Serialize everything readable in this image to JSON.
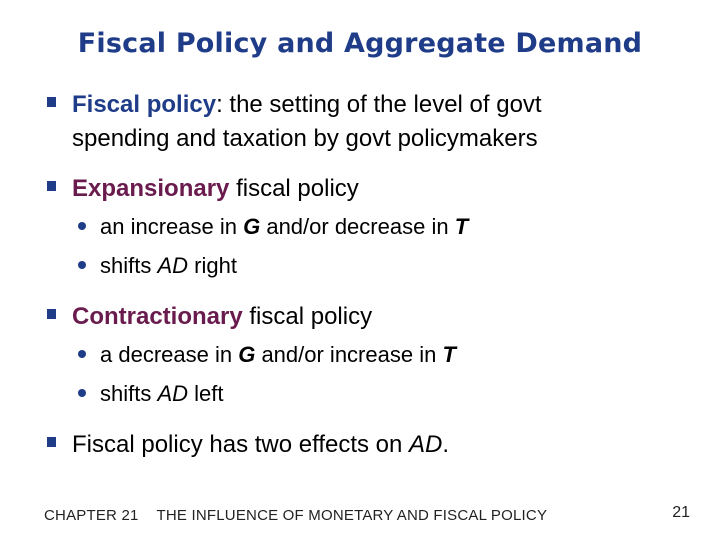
{
  "slide": {
    "title": "Fiscal Policy and Aggregate Demand",
    "bullet1": {
      "term": "Fiscal policy",
      "rest_line1": ":  the setting of the level of govt",
      "line2": "spending and taxation by govt policymakers"
    },
    "bullet2": {
      "term": "Expansionary",
      "rest": " fiscal policy",
      "sub1": {
        "a": "an increase in ",
        "G": "G",
        "b": " and/or decrease in ",
        "T": "T"
      },
      "sub2": {
        "a": "shifts ",
        "AD": "AD",
        "b": " right"
      }
    },
    "bullet3": {
      "term": "Contractionary",
      "rest": " fiscal policy",
      "sub1": {
        "a": "a decrease in ",
        "G": "G",
        "b": " and/or increase in ",
        "T": "T"
      },
      "sub2": {
        "a": "shifts ",
        "AD": "AD",
        "b": " left"
      }
    },
    "bullet4": {
      "a": "Fiscal policy has two effects on ",
      "AD": "AD",
      "b": "."
    }
  },
  "footer": {
    "chapter": "CHAPTER 21",
    "chapter_title": "THE INFLUENCE OF MONETARY AND FISCAL POLICY",
    "page_number": "21"
  },
  "colors": {
    "title": "#1f3c88",
    "term": "#6a1b4d",
    "bullet_marker": "#1f3c88"
  }
}
